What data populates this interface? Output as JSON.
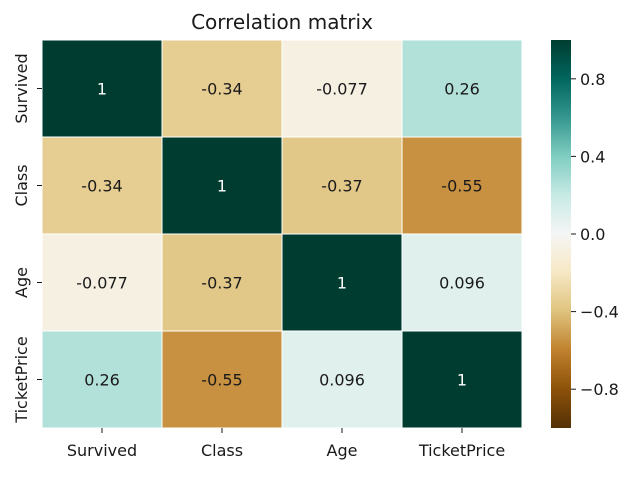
{
  "chart_data": {
    "type": "heatmap",
    "title": "Correlation matrix",
    "xlabel": "",
    "ylabel": "",
    "x_categories": [
      "Survived",
      "Class",
      "Age",
      "TicketPrice"
    ],
    "y_categories": [
      "Survived",
      "Class",
      "Age",
      "TicketPrice"
    ],
    "values": [
      [
        1,
        -0.34,
        -0.077,
        0.26
      ],
      [
        -0.34,
        1,
        -0.37,
        -0.55
      ],
      [
        -0.077,
        -0.37,
        1,
        0.096
      ],
      [
        0.26,
        -0.55,
        0.096,
        1
      ]
    ],
    "value_labels": [
      [
        "1",
        "-0.34",
        "-0.077",
        "0.26"
      ],
      [
        "-0.34",
        "1",
        "-0.37",
        "-0.55"
      ],
      [
        "-0.077",
        "-0.37",
        "1",
        "0.096"
      ],
      [
        "0.26",
        "-0.55",
        "0.096",
        "1"
      ]
    ],
    "colormap": "BrBG",
    "vmin": -1,
    "vmax": 1,
    "colorbar": {
      "ticks": [
        -0.8,
        -0.4,
        0.0,
        0.4,
        0.8
      ],
      "tick_labels": [
        "−0.8",
        "−0.4",
        "0.0",
        "0.4",
        "0.8"
      ]
    },
    "grid": false,
    "legend": "colorbar-right",
    "colors": {
      "low": "#543005",
      "mid": "#f5f5f5",
      "high": "#003c30",
      "cell_border": "#ffffff"
    }
  }
}
